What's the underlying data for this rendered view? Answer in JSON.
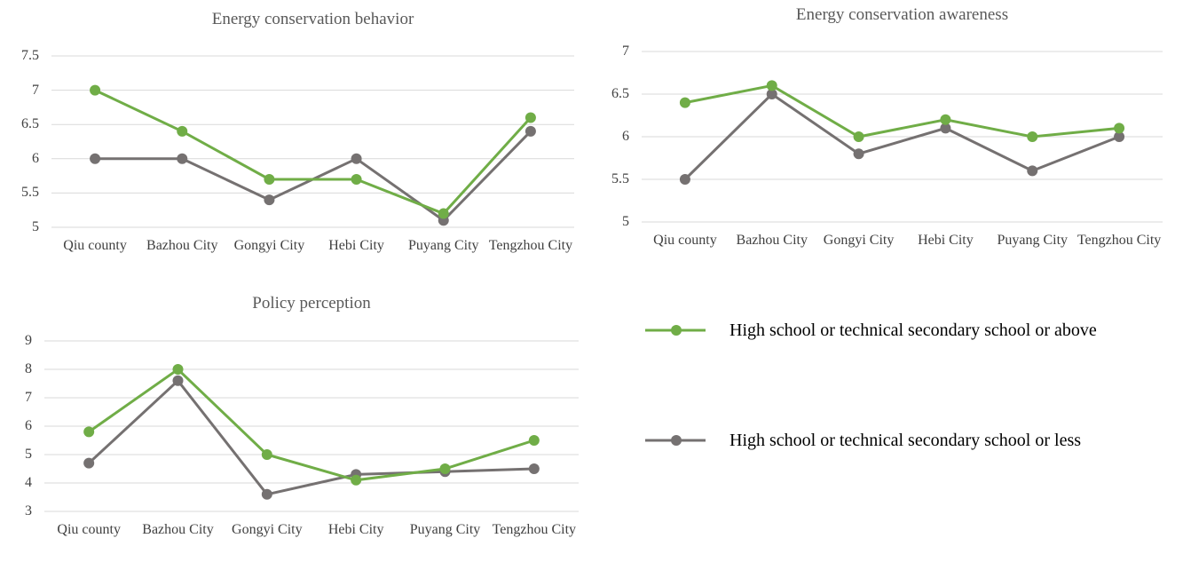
{
  "chart_data": [
    {
      "type": "line",
      "title": "Energy conservation behavior",
      "categories": [
        "Qiu county",
        "Bazhou City",
        "Gongyi City",
        "Hebi City",
        "Puyang City",
        "Tengzhou City"
      ],
      "series": [
        {
          "name": "High school or technical secondary school or above",
          "color": "#70ad47",
          "values": [
            7,
            6.4,
            5.7,
            5.7,
            5.2,
            6.6
          ]
        },
        {
          "name": "High school or technical secondary school or less",
          "color": "#757171",
          "values": [
            6,
            6,
            5.4,
            6,
            5.1,
            6.4
          ]
        }
      ],
      "ylim": [
        5,
        7.5
      ],
      "yticks": [
        5,
        5.5,
        6,
        6.5,
        7,
        7.5
      ],
      "grid": true
    },
    {
      "type": "line",
      "title": "Energy conservation awareness",
      "categories": [
        "Qiu county",
        "Bazhou City",
        "Gongyi City",
        "Hebi City",
        "Puyang City",
        "Tengzhou City"
      ],
      "series": [
        {
          "color": "#70ad47",
          "values": [
            6.4,
            6.6,
            6.0,
            6.2,
            6.0,
            6.1
          ]
        },
        {
          "color": "#757171",
          "values": [
            5.5,
            6.5,
            5.8,
            6.1,
            5.6,
            6.0
          ]
        }
      ],
      "ylim": [
        5,
        7
      ],
      "yticks": [
        5,
        5.5,
        6,
        6.5,
        7
      ],
      "grid": true
    },
    {
      "type": "line",
      "title": "Policy perception",
      "categories": [
        "Qiu county",
        "Bazhou City",
        "Gongyi City",
        "Hebi City",
        "Puyang City",
        "Tengzhou City"
      ],
      "series": [
        {
          "color": "#70ad47",
          "values": [
            5.8,
            8.0,
            5.0,
            4.1,
            4.5,
            5.5
          ]
        },
        {
          "color": "#757171",
          "values": [
            4.7,
            7.6,
            3.6,
            4.3,
            4.4,
            4.5
          ]
        }
      ],
      "ylim": [
        3,
        9
      ],
      "yticks": [
        3,
        4,
        5,
        6,
        7,
        8,
        9
      ],
      "grid": true
    }
  ]
}
